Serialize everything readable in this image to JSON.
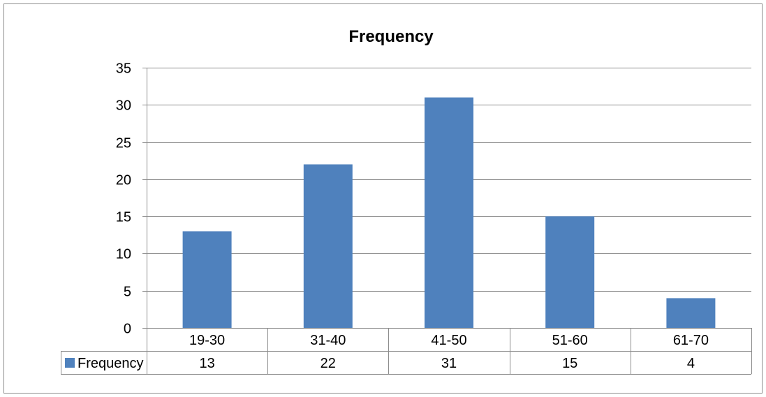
{
  "chart_data": {
    "type": "bar",
    "title": "Frequency",
    "categories": [
      "19-30",
      "31-40",
      "41-50",
      "51-60",
      "61-70"
    ],
    "series": [
      {
        "name": "Frequency",
        "values": [
          13,
          22,
          31,
          15,
          4
        ],
        "color": "#4f81bd"
      }
    ],
    "ylim": [
      0,
      35
    ],
    "yticks": [
      0,
      5,
      10,
      15,
      20,
      25,
      30,
      35
    ],
    "xlabel": "",
    "ylabel": "",
    "grid": true,
    "legend": "data-table-left",
    "data_table": true
  }
}
